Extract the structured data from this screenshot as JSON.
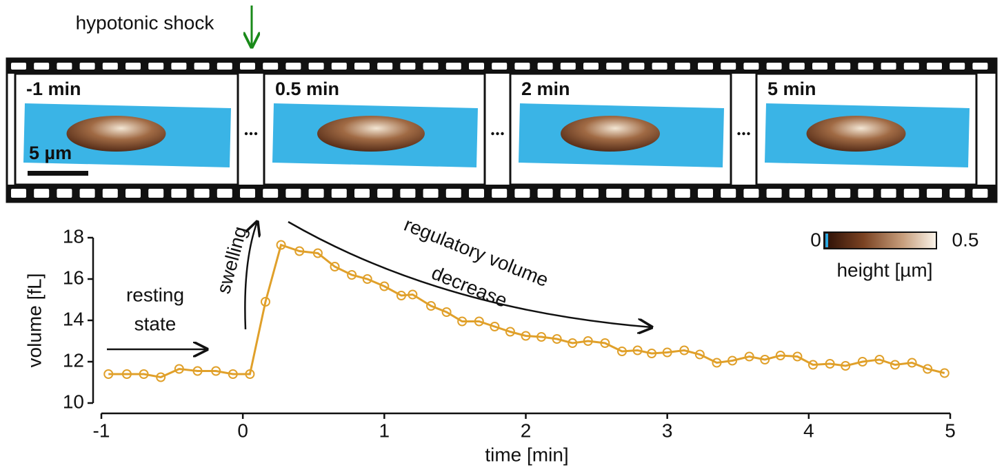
{
  "header": {
    "annotation": "hypotonic shock"
  },
  "filmstrip": {
    "frames": [
      "-1 min",
      "0.5 min",
      "2 min",
      "5 min"
    ],
    "scale_bar": "5 µm"
  },
  "colorbar": {
    "min": 0,
    "max": 0.5,
    "label": "height [µm]"
  },
  "chart_data": {
    "type": "line",
    "x_label": "time [min]",
    "y_label": "volume [fL]",
    "x": [
      -0.95,
      -0.82,
      -0.7,
      -0.58,
      -0.45,
      -0.32,
      -0.19,
      -0.07,
      0.05,
      0.16,
      0.27,
      0.4,
      0.53,
      0.65,
      0.77,
      0.88,
      1.0,
      1.12,
      1.2,
      1.33,
      1.44,
      1.55,
      1.67,
      1.78,
      1.89,
      2.0,
      2.11,
      2.22,
      2.33,
      2.44,
      2.56,
      2.68,
      2.79,
      2.89,
      3.0,
      3.12,
      3.23,
      3.35,
      3.46,
      3.58,
      3.69,
      3.8,
      3.92,
      4.03,
      4.15,
      4.26,
      4.38,
      4.5,
      4.61,
      4.73,
      4.84,
      4.96
    ],
    "values": [
      11.4,
      11.4,
      11.4,
      11.25,
      11.65,
      11.55,
      11.55,
      11.4,
      11.4,
      14.9,
      17.65,
      17.35,
      17.25,
      16.6,
      16.2,
      16.0,
      15.65,
      15.2,
      15.25,
      14.7,
      14.4,
      13.95,
      13.95,
      13.7,
      13.45,
      13.25,
      13.2,
      13.1,
      12.9,
      13.0,
      12.9,
      12.5,
      12.55,
      12.4,
      12.45,
      12.55,
      12.35,
      11.95,
      12.05,
      12.25,
      12.1,
      12.3,
      12.25,
      11.85,
      11.9,
      11.8,
      12.0,
      12.1,
      11.85,
      11.95,
      11.65,
      11.45
    ],
    "color": "#e0a02a",
    "xlim": [
      -1,
      5
    ],
    "xticks": [
      -1,
      0,
      1,
      2,
      3,
      4,
      5
    ],
    "ylim": [
      10,
      18
    ],
    "yticks": [
      10,
      12,
      14,
      16,
      18
    ],
    "annotations": [
      {
        "lines": [
          "resting",
          "state"
        ]
      },
      {
        "lines": [
          "swelling"
        ]
      },
      {
        "lines": [
          "regulatory volume",
          "decrease"
        ]
      }
    ]
  }
}
